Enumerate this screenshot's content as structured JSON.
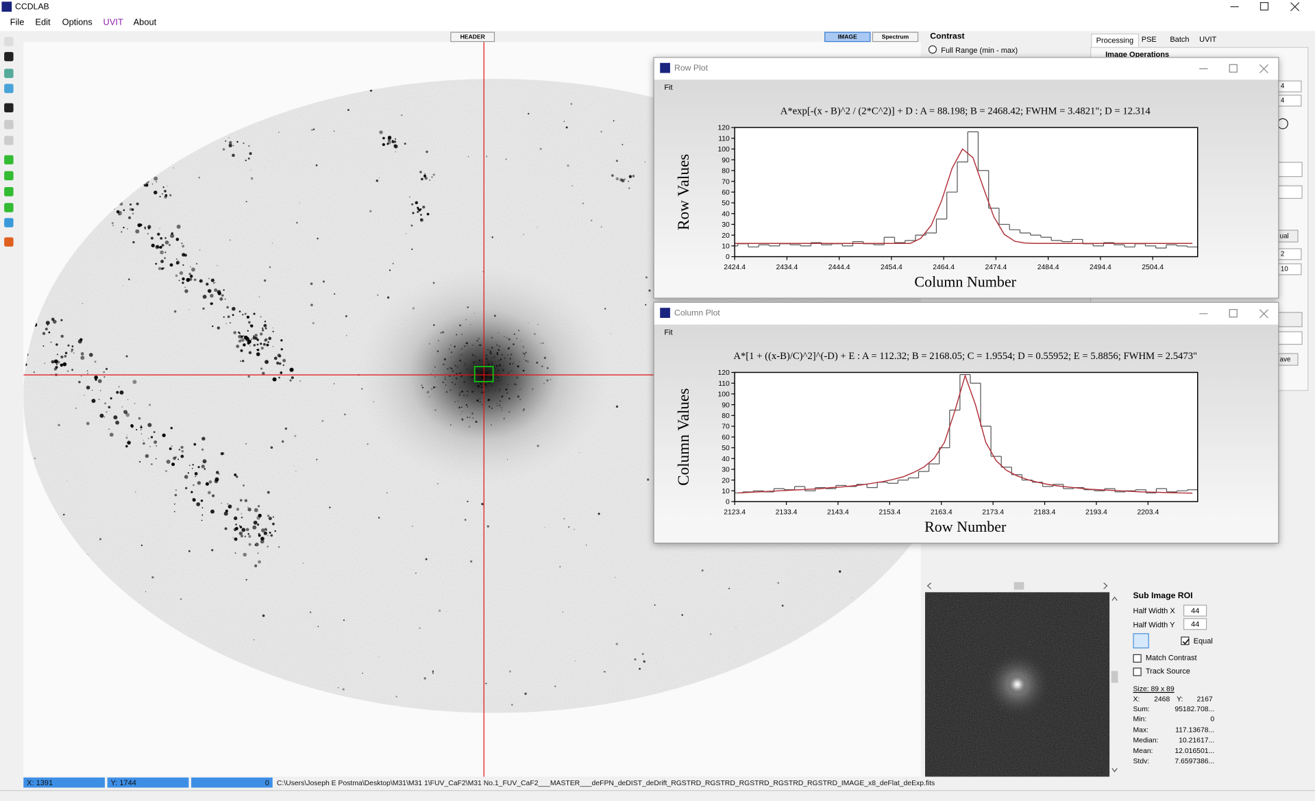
{
  "app": {
    "title": "CCDLAB",
    "menu": [
      "File",
      "Edit",
      "Options",
      "UVIT",
      "About"
    ]
  },
  "toolbar": {
    "header_button": "HEADER",
    "image_button": "IMAGE",
    "spectrum_button": "Spectrum"
  },
  "contrast": {
    "title": "Contrast",
    "full_range": "Full Range (min - max)"
  },
  "tabs": [
    "Processing",
    "PSE",
    "Batch",
    "UVIT"
  ],
  "image_operations": "Image Operations",
  "side_controls": {
    "spin_values": [
      "4",
      "4",
      "2",
      "10"
    ],
    "partial_buttons": [
      "ual",
      "ave"
    ]
  },
  "row_plot": {
    "window_title": "Row Plot",
    "menu": "Fit",
    "chart": {
      "type": "step",
      "title": "A*exp[-(x - B)^2 / (2*C^2)] + D : A = 88.198; B = 2468.42; FWHM = 3.4821\"; D = 12.314",
      "xlabel": "Column Number",
      "ylabel": "Row Values",
      "x": [
        2424,
        2426,
        2428,
        2430,
        2432,
        2434,
        2436,
        2438,
        2440,
        2442,
        2444,
        2446,
        2448,
        2450,
        2452,
        2454,
        2456,
        2458,
        2460,
        2462,
        2464,
        2466,
        2468,
        2470,
        2472,
        2474,
        2476,
        2478,
        2480,
        2482,
        2484,
        2486,
        2488,
        2490,
        2492,
        2494,
        2496,
        2498,
        2500,
        2502,
        2504,
        2506,
        2508,
        2510,
        2512
      ],
      "series": [
        {
          "color": "#555555",
          "values": [
            10,
            12,
            9,
            11,
            10,
            12,
            11,
            10,
            13,
            11,
            12,
            10,
            14,
            12,
            11,
            18,
            13,
            15,
            20,
            22,
            35,
            60,
            88,
            116,
            80,
            45,
            30,
            25,
            22,
            20,
            18,
            15,
            14,
            16,
            12,
            10,
            13,
            11,
            9,
            12,
            10,
            8,
            11,
            10,
            9
          ]
        },
        {
          "color": "#b0303a",
          "values": [
            12.3,
            12.3,
            12.3,
            12.3,
            12.3,
            12.3,
            12.3,
            12.3,
            12.3,
            12.3,
            12.3,
            12.3,
            12.3,
            12.3,
            12.3,
            12.3,
            12.3,
            12.3,
            17,
            29,
            52,
            82,
            100,
            92,
            64,
            37,
            20.7,
            14.3,
            12.6,
            12.3,
            12.3,
            12.3,
            12.3,
            12.3,
            12.3,
            12.3,
            12.3,
            12.3,
            12.3,
            12.3,
            12.3,
            12.3,
            12.3,
            12.3,
            12.3
          ]
        }
      ],
      "xlim": [
        2424.4,
        2513
      ],
      "ylim": [
        0,
        120
      ],
      "xticks": [
        2424.4,
        2434.4,
        2444.4,
        2454.4,
        2464.4,
        2474.4,
        2484.4,
        2494.4,
        2504.4
      ],
      "yticks": [
        0,
        10,
        20,
        30,
        40,
        50,
        60,
        70,
        80,
        90,
        100,
        110,
        120
      ]
    }
  },
  "column_plot": {
    "window_title": "Column Plot",
    "menu": "Fit",
    "chart": {
      "type": "step",
      "title": "A*[1 + ((x-B)/C)^2]^(-D) + E : A = 112.32; B = 2168.05; C = 1.9554; D = 0.55952; E = 5.8856; FWHM = 2.5473\"",
      "xlabel": "Row Number",
      "ylabel": "Column Values",
      "x": [
        2124,
        2126,
        2128,
        2130,
        2132,
        2134,
        2136,
        2138,
        2140,
        2142,
        2144,
        2146,
        2148,
        2150,
        2152,
        2154,
        2156,
        2158,
        2160,
        2162,
        2164,
        2166,
        2168,
        2170,
        2172,
        2174,
        2176,
        2178,
        2180,
        2182,
        2184,
        2186,
        2188,
        2190,
        2192,
        2194,
        2196,
        2198,
        2200,
        2202,
        2204,
        2206,
        2208,
        2210,
        2212
      ],
      "series": [
        {
          "color": "#555555",
          "values": [
            8,
            9,
            10,
            9,
            12,
            11,
            14,
            10,
            13,
            12,
            15,
            14,
            16,
            13,
            18,
            17,
            20,
            22,
            28,
            35,
            50,
            85,
            118,
            110,
            70,
            42,
            32,
            25,
            20,
            18,
            14,
            16,
            12,
            13,
            11,
            10,
            12,
            9,
            10,
            11,
            8,
            12,
            9,
            10,
            11
          ]
        },
        {
          "color": "#b0303a",
          "values": [
            8,
            8.5,
            9,
            9.5,
            10,
            10.5,
            11,
            11.5,
            12,
            13,
            13.5,
            14.5,
            15.5,
            17,
            18.5,
            20.5,
            23,
            27,
            32,
            40,
            55,
            84,
            117,
            90,
            55,
            38,
            29,
            24,
            20.5,
            18,
            16,
            14.5,
            13.5,
            12.5,
            11.5,
            11,
            10.5,
            10,
            9.5,
            9,
            8.8,
            8.5,
            8.2,
            8,
            7.8
          ]
        }
      ],
      "xlim": [
        2123.4,
        2213
      ],
      "ylim": [
        0,
        120
      ],
      "xticks": [
        2123.4,
        2133.4,
        2143.4,
        2153.4,
        2163.4,
        2173.4,
        2183.4,
        2193.4,
        2203.4
      ],
      "yticks": [
        0,
        10,
        20,
        30,
        40,
        50,
        60,
        70,
        80,
        90,
        100,
        110,
        120
      ]
    }
  },
  "sub_image": {
    "title": "Sub Image ROI",
    "half_width_x_label": "Half Width X",
    "half_width_x": "44",
    "half_width_y_label": "Half Width Y",
    "half_width_y": "44",
    "equal": "Equal",
    "match_contrast": "Match Contrast",
    "track_source": "Track Source",
    "size": "Size: 89 x 89",
    "position": {
      "x_label": "X:",
      "x": "2468",
      "y_label": "Y:",
      "y": "2167"
    },
    "stats": [
      {
        "label": "Sum:",
        "value": "95182.708..."
      },
      {
        "label": "Min:",
        "value": "0"
      },
      {
        "label": "Max:",
        "value": "117.13678..."
      },
      {
        "label": "Median:",
        "value": "10.21617..."
      },
      {
        "label": "Mean:",
        "value": "12.016501..."
      },
      {
        "label": "Stdv:",
        "value": "7.6597386..."
      }
    ]
  },
  "status": {
    "x": "X:   1391",
    "y": "Y:   1744",
    "value": "0",
    "path": "C:\\Users\\Joseph E Postma\\Desktop\\M31\\M31 1\\FUV_CaF2\\M31 No.1_FUV_CaF2___MASTER___deFPN_deDIST_deDrift_RGSTRD_RGSTRD_RGSTRD_RGSTRD_RGSTRD_IMAGE_x8_deFlat_deExp.fits"
  }
}
